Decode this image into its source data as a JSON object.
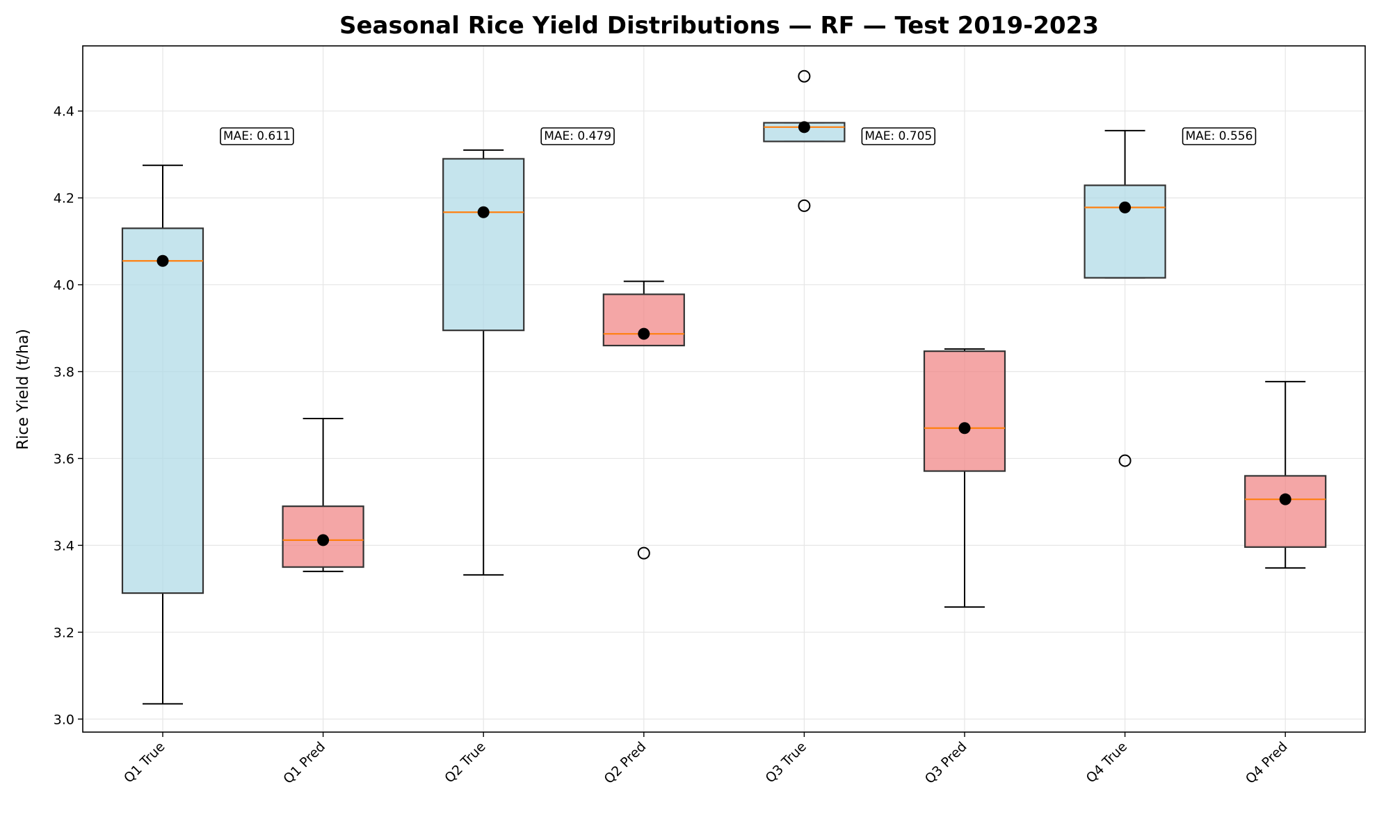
{
  "chart_data": {
    "type": "box",
    "title": "Seasonal Rice Yield Distributions — RF — Test 2019-2023",
    "xlabel": "",
    "ylabel": "Rice Yield (t/ha)",
    "ylim": [
      2.97,
      4.55
    ],
    "yticks": [
      3.0,
      3.2,
      3.4,
      3.6,
      3.8,
      4.0,
      4.2,
      4.4
    ],
    "grid": true,
    "colors": {
      "true": "#add8e6",
      "pred": "#f08080",
      "median": "#ff7f0e",
      "mean": "#000000",
      "edge": "#333333"
    },
    "boxes": [
      {
        "label": "Q1 True",
        "kind": "true",
        "whisker_low": 3.035,
        "q1": 3.29,
        "median": 4.055,
        "q3": 4.13,
        "whisker_high": 4.275,
        "mean": 4.055,
        "outliers": []
      },
      {
        "label": "Q1 Pred",
        "kind": "pred",
        "whisker_low": 3.34,
        "q1": 3.35,
        "median": 3.412,
        "q3": 3.49,
        "whisker_high": 3.692,
        "mean": 3.412,
        "outliers": []
      },
      {
        "label": "Q2 True",
        "kind": "true",
        "whisker_low": 3.332,
        "q1": 3.895,
        "median": 4.167,
        "q3": 4.29,
        "whisker_high": 4.31,
        "mean": 4.167,
        "outliers": []
      },
      {
        "label": "Q2 Pred",
        "kind": "pred",
        "whisker_low": 3.86,
        "q1": 3.86,
        "median": 3.887,
        "q3": 3.978,
        "whisker_high": 4.008,
        "mean": 3.887,
        "outliers": [
          3.382
        ]
      },
      {
        "label": "Q3 True",
        "kind": "true",
        "whisker_low": 4.33,
        "q1": 4.33,
        "median": 4.363,
        "q3": 4.373,
        "whisker_high": 4.373,
        "mean": 4.363,
        "outliers": [
          4.48,
          4.182
        ]
      },
      {
        "label": "Q3 Pred",
        "kind": "pred",
        "whisker_low": 3.258,
        "q1": 3.571,
        "median": 3.67,
        "q3": 3.847,
        "whisker_high": 3.852,
        "mean": 3.67,
        "outliers": []
      },
      {
        "label": "Q4 True",
        "kind": "true",
        "whisker_low": 4.016,
        "q1": 4.016,
        "median": 4.178,
        "q3": 4.229,
        "whisker_high": 4.355,
        "mean": 4.178,
        "outliers": [
          3.595
        ]
      },
      {
        "label": "Q4 Pred",
        "kind": "pred",
        "whisker_low": 3.348,
        "q1": 3.396,
        "median": 3.506,
        "q3": 3.56,
        "whisker_high": 3.777,
        "mean": 3.506,
        "outliers": []
      }
    ],
    "annotations": [
      {
        "text": "MAE: 0.611",
        "quarter": "Q1"
      },
      {
        "text": "MAE: 0.479",
        "quarter": "Q2"
      },
      {
        "text": "MAE: 0.705",
        "quarter": "Q3"
      },
      {
        "text": "MAE: 0.556",
        "quarter": "Q4"
      }
    ]
  }
}
